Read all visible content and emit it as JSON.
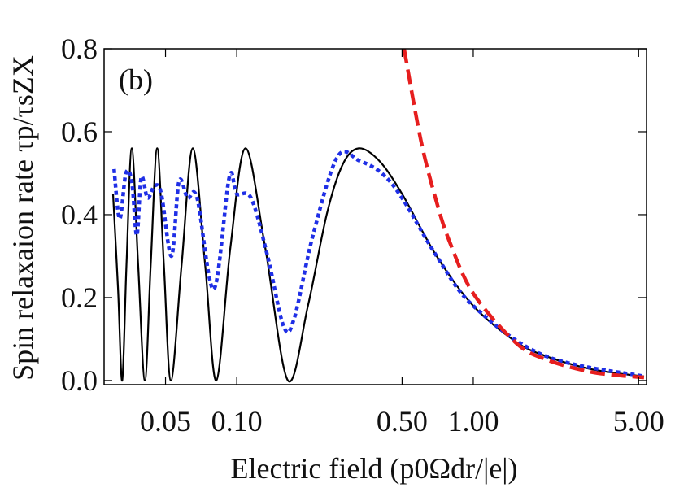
{
  "chart_data": {
    "type": "line",
    "annotation": "(b)",
    "xlabel": "Electric field (p0Ωdr/|e|)",
    "ylabel": "Spin relaxaion rate τp/τsZX",
    "xscale": "log",
    "xlim": [
      0.0275,
      5.4
    ],
    "ylim": [
      -0.01,
      0.8
    ],
    "xticks": [
      {
        "value": 0.05,
        "label": "0.05"
      },
      {
        "value": 0.1,
        "label": "0.10"
      },
      {
        "value": 0.5,
        "label": "0.50"
      },
      {
        "value": 1,
        "label": "1.00"
      },
      {
        "value": 5,
        "label": "5.00"
      }
    ],
    "yticks": [
      {
        "value": 0,
        "label": "0.0"
      },
      {
        "value": 0.2,
        "label": "0.2"
      },
      {
        "value": 0.4,
        "label": "0.4"
      },
      {
        "value": 0.6,
        "label": "0.6"
      },
      {
        "value": 0.8,
        "label": "0.8"
      }
    ],
    "series": [
      {
        "color": "#000000",
        "dash": "none",
        "x": [
          0.03,
          0.0315,
          0.0328,
          0.0342,
          0.036,
          0.0383,
          0.0409,
          0.0433,
          0.0461,
          0.0492,
          0.0527,
          0.0585,
          0.0652,
          0.0735,
          0.082,
          0.094,
          0.109,
          0.132,
          0.1646,
          0.2,
          0.24,
          0.28,
          0.328,
          0.4,
          0.5,
          0.7,
          1.0,
          1.5,
          2.0,
          3.0,
          4.0,
          5.27
        ],
        "values": [
          0.45,
          0.22,
          0.0,
          0.28,
          0.56,
          0.28,
          0.0,
          0.28,
          0.56,
          0.28,
          0.0,
          0.28,
          0.56,
          0.28,
          0.0,
          0.32,
          0.56,
          0.32,
          0.0,
          0.18,
          0.4,
          0.52,
          0.56,
          0.53,
          0.45,
          0.3,
          0.18,
          0.095,
          0.06,
          0.03,
          0.018,
          0.01
        ]
      },
      {
        "color": "#1f2fe6",
        "dash": "dot",
        "x": [
          0.0303,
          0.032,
          0.034,
          0.036,
          0.0378,
          0.0395,
          0.042,
          0.045,
          0.048,
          0.053,
          0.057,
          0.062,
          0.068,
          0.08,
          0.093,
          0.1,
          0.115,
          0.135,
          0.158,
          0.175,
          0.21,
          0.267,
          0.33,
          0.41,
          0.5,
          0.7,
          1.0,
          2.0,
          5.27
        ],
        "values": [
          0.51,
          0.39,
          0.5,
          0.48,
          0.35,
          0.49,
          0.44,
          0.47,
          0.45,
          0.3,
          0.48,
          0.44,
          0.44,
          0.22,
          0.49,
          0.45,
          0.44,
          0.3,
          0.13,
          0.15,
          0.35,
          0.54,
          0.53,
          0.5,
          0.44,
          0.3,
          0.18,
          0.06,
          0.01
        ]
      },
      {
        "color": "#e61e1e",
        "dash": "dash",
        "x": [
          0.51,
          0.6,
          0.7,
          0.8,
          1.0,
          1.5,
          2.0,
          3.0,
          4.0,
          5.27
        ],
        "values": [
          0.8,
          0.58,
          0.43,
          0.33,
          0.21,
          0.093,
          0.052,
          0.023,
          0.013,
          0.0075
        ]
      }
    ]
  }
}
